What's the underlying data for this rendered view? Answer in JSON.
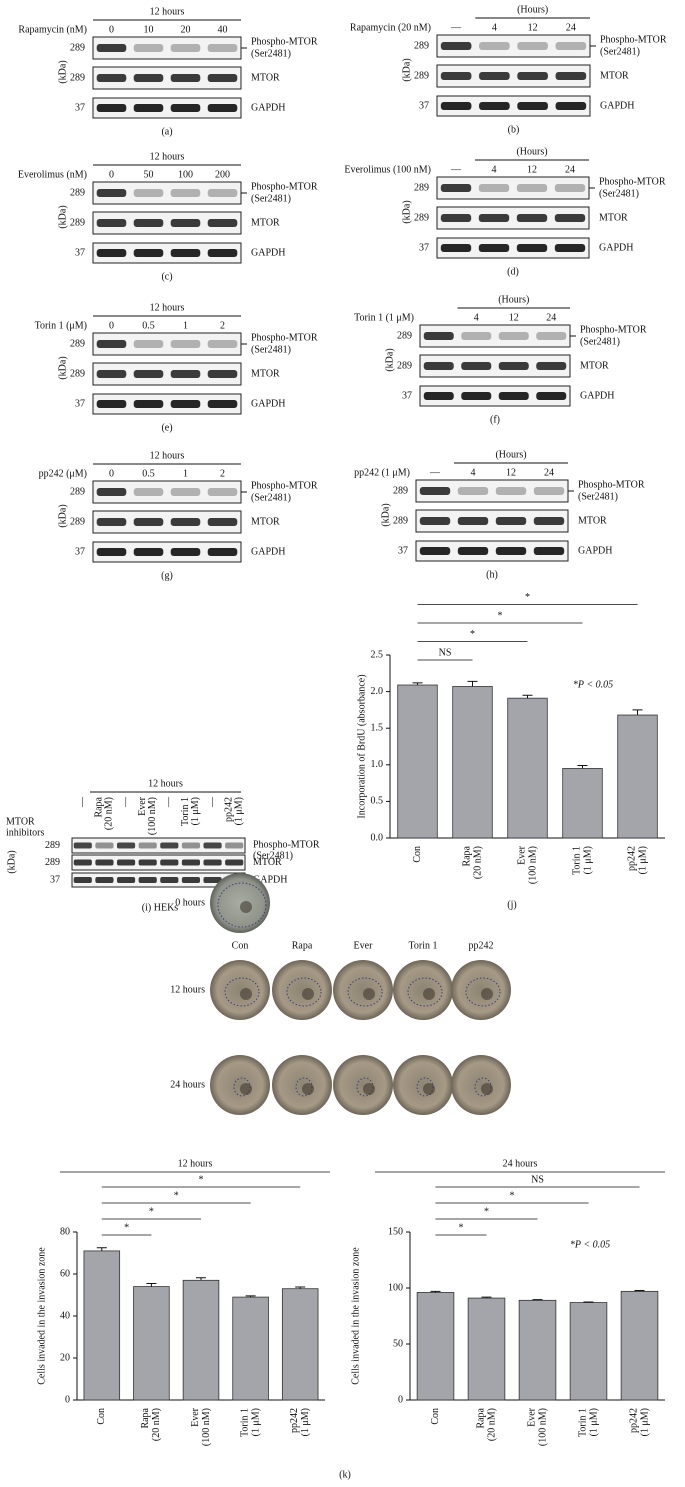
{
  "blots": [
    {
      "label": "(a)",
      "treatment": "Rapamycin (nM)",
      "header": "12 hours",
      "lanes": [
        "0",
        "10",
        "20",
        "40"
      ],
      "kda_unit": "(kDa)",
      "rows": [
        {
          "kda": 289,
          "name": [
            "Phospho-MTOR",
            "(Ser2481)"
          ]
        },
        {
          "kda": 289,
          "name": [
            "MTOR"
          ]
        },
        {
          "kda": 37,
          "name": [
            "GAPDH"
          ]
        }
      ]
    },
    {
      "label": "(b)",
      "treatment": "Rapamycin (20 nM)",
      "header": "(Hours)",
      "lanes": [
        "—",
        "4",
        "12",
        "24"
      ],
      "kda_unit": "(kDa)",
      "rows": [
        {
          "kda": 289,
          "name": [
            "Phospho-MTOR",
            "(Ser2481)"
          ]
        },
        {
          "kda": 289,
          "name": [
            "MTOR"
          ]
        },
        {
          "kda": 37,
          "name": [
            "GAPDH"
          ]
        }
      ]
    },
    {
      "label": "(c)",
      "treatment": "Everolimus (nM)",
      "header": "12 hours",
      "lanes": [
        "0",
        "50",
        "100",
        "200"
      ],
      "kda_unit": "(kDa)",
      "rows": [
        {
          "kda": 289,
          "name": [
            "Phospho-MTOR",
            "(Ser2481)"
          ]
        },
        {
          "kda": 289,
          "name": [
            "MTOR"
          ]
        },
        {
          "kda": 37,
          "name": [
            "GAPDH"
          ]
        }
      ]
    },
    {
      "label": "(d)",
      "treatment": "Everolimus (100 nM)",
      "header": "(Hours)",
      "lanes": [
        "—",
        "4",
        "12",
        "24"
      ],
      "kda_unit": "(kDa)",
      "rows": [
        {
          "kda": 289,
          "name": [
            "Phospho-MTOR",
            "(Ser2481)"
          ]
        },
        {
          "kda": 289,
          "name": [
            "MTOR"
          ]
        },
        {
          "kda": 37,
          "name": [
            "GAPDH"
          ]
        }
      ]
    },
    {
      "label": "(e)",
      "treatment": "Torin 1 (μM)",
      "header": "12 hours",
      "lanes": [
        "0",
        "0.5",
        "1",
        "2"
      ],
      "kda_unit": "(kDa)",
      "rows": [
        {
          "kda": 289,
          "name": [
            "Phospho-MTOR",
            "(Ser2481)"
          ]
        },
        {
          "kda": 289,
          "name": [
            "MTOR"
          ]
        },
        {
          "kda": 37,
          "name": [
            "GAPDH"
          ]
        }
      ]
    },
    {
      "label": "(f)",
      "treatment": "Torin 1 (1 μM)",
      "header": "(Hours)",
      "lanes": [
        null,
        "4",
        "12",
        "24"
      ],
      "kda_unit": "(kDa)",
      "rows": [
        {
          "kda": 289,
          "name": [
            "Phospho-MTOR",
            "(Ser2481)"
          ]
        },
        {
          "kda": 289,
          "name": [
            "MTOR"
          ]
        },
        {
          "kda": 37,
          "name": [
            "GAPDH"
          ]
        }
      ]
    },
    {
      "label": "(g)",
      "treatment": "pp242 (μM)",
      "header": "12 hours",
      "lanes": [
        "0",
        "0.5",
        "1",
        "2"
      ],
      "kda_unit": "(kDa)",
      "rows": [
        {
          "kda": 289,
          "name": [
            "Phospho-MTOR",
            "(Ser2481)"
          ]
        },
        {
          "kda": 289,
          "name": [
            "MTOR"
          ]
        },
        {
          "kda": 37,
          "name": [
            "GAPDH"
          ]
        }
      ]
    },
    {
      "label": "(h)",
      "treatment": "pp242 (1 μM)",
      "header": "(Hours)",
      "lanes": [
        "—",
        "4",
        "12",
        "24"
      ],
      "kda_unit": "(kDa)",
      "rows": [
        {
          "kda": 289,
          "name": [
            "Phospho-MTOR",
            "(Ser2481)"
          ]
        },
        {
          "kda": 289,
          "name": [
            "MTOR"
          ]
        },
        {
          "kda": 37,
          "name": [
            "GAPDH"
          ]
        }
      ]
    }
  ],
  "hek_blot": {
    "label": "(i) HEKs",
    "treatment": [
      "MTOR",
      "inhibitors"
    ],
    "header": "12 hours",
    "kda_unit": "(kDa)",
    "lanes": [
      [
        "—"
      ],
      [
        "Rapa",
        "(20 nM)"
      ],
      [
        "—"
      ],
      [
        "Ever",
        "(100 nM)"
      ],
      [
        "—"
      ],
      [
        "Torin 1",
        "(1 μM)"
      ],
      [
        "—"
      ],
      [
        "pp242",
        "(1 μM)"
      ]
    ],
    "rows": [
      {
        "kda": 289,
        "name": [
          "Phospho-MTOR",
          "(Ser2481)"
        ]
      },
      {
        "kda": 289,
        "name": [
          "MTOR"
        ]
      },
      {
        "kda": 37,
        "name": [
          "GAPDH"
        ]
      }
    ]
  },
  "chart_data": [
    {
      "type": "bar",
      "panel_label": "(j)",
      "y_label": "Incorporation of BrdU (absorbance)",
      "color": "#a4a5ab",
      "categories": [
        [
          "Con"
        ],
        [
          "Rapa",
          "(20 nM)"
        ],
        [
          "Ever",
          "(100 nM)"
        ],
        [
          "Torin 1",
          "(1 μM)"
        ],
        [
          "pp242",
          "(1 μM)"
        ]
      ],
      "values": [
        2.09,
        2.07,
        1.91,
        0.95,
        1.68
      ],
      "errors": [
        0.03,
        0.07,
        0.04,
        0.04,
        0.07
      ],
      "significance": [
        null,
        "NS",
        "*",
        "*",
        "*"
      ],
      "annotation": "*P < 0.05",
      "ylim": [
        0,
        2.5
      ],
      "yticks": [
        {
          "value": 0,
          "label": "0.0"
        },
        0.5,
        {
          "value": 1,
          "label": "1.0"
        },
        1.5,
        {
          "value": 2,
          "label": "2.0"
        },
        2.5
      ]
    },
    {
      "type": "bar",
      "title": "12 hours",
      "y_label": "Cells invaded in the invasion zone",
      "color": "#a4a5ab",
      "categories": [
        [
          "Con"
        ],
        [
          "Rapa",
          "(20 nM)"
        ],
        [
          "Ever",
          "(100 nM)"
        ],
        [
          "Torin 1",
          "(1 μM)"
        ],
        [
          "pp242",
          "(1 μM)"
        ]
      ],
      "values": [
        71,
        54,
        57,
        49,
        53
      ],
      "errors": [
        1.5,
        1.5,
        1.2,
        0.6,
        0.8
      ],
      "significance": [
        null,
        "*",
        "*",
        "*",
        "*"
      ],
      "ylim": [
        0,
        80
      ],
      "yticks": [
        0,
        20,
        40,
        60,
        80
      ]
    },
    {
      "type": "bar",
      "title": "24 hours",
      "y_label": "Cells invaded in the invasion zone",
      "color": "#a4a5ab",
      "categories": [
        [
          "Con"
        ],
        [
          "Rapa",
          "(20 nM)"
        ],
        [
          "Ever",
          "(100 nM)"
        ],
        [
          "Torin 1",
          "(1 μM)"
        ],
        [
          "pp242",
          "(1 μM)"
        ]
      ],
      "values": [
        96,
        91,
        89,
        87,
        97
      ],
      "errors": [
        1,
        0.8,
        0.6,
        0.5,
        0.8
      ],
      "significance": [
        null,
        "*",
        "*",
        "*",
        "NS"
      ],
      "annotation": "*P < 0.05",
      "ylim": [
        0,
        150
      ],
      "yticks": [
        0,
        50,
        100,
        150
      ]
    }
  ],
  "scratch_assay": {
    "rows": [
      "0 hours",
      "12 hours",
      "24 hours"
    ],
    "columns": [
      "Con",
      "Rapa",
      "Ever",
      "Torin 1",
      "pp242"
    ]
  },
  "k_label": "(k)"
}
